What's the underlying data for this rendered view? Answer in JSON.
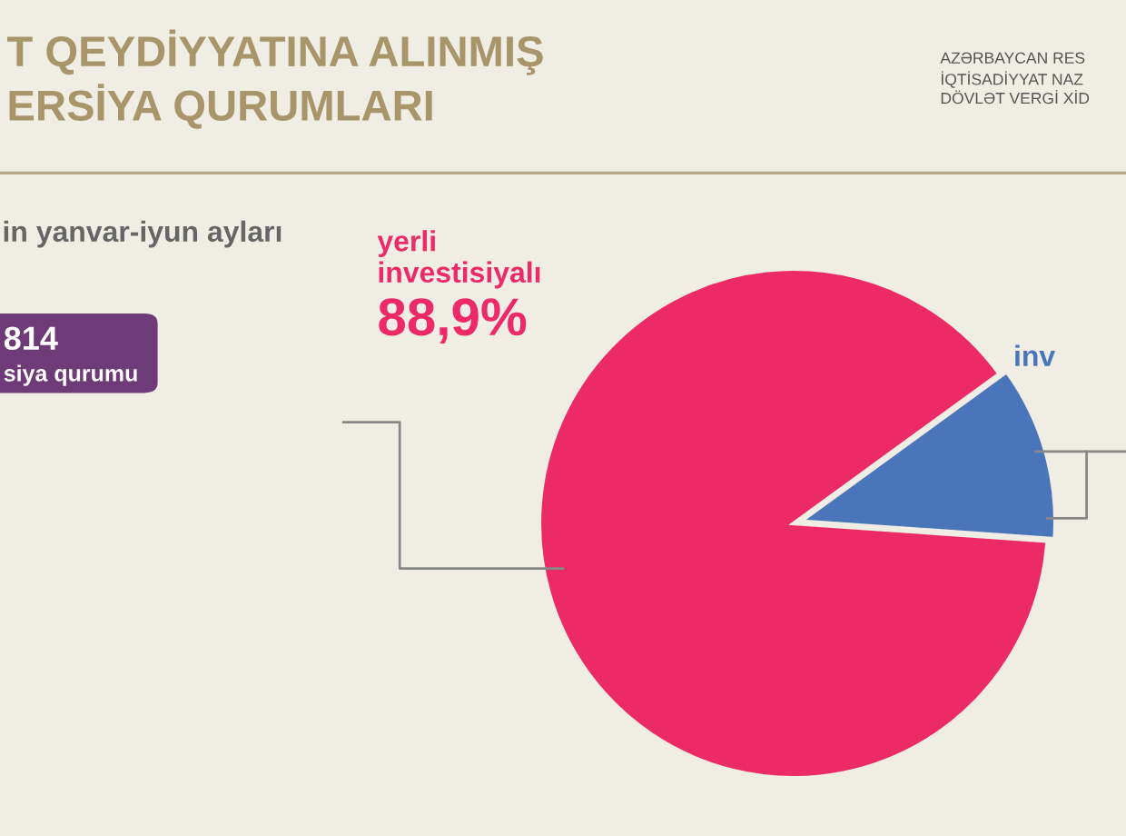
{
  "chart_data": {
    "type": "pie",
    "title": "T QEYDİYYATINA ALINMIŞ\nERSİYA QURUMLARI",
    "subtitle": "in yanvar-iyun ayları",
    "categories": [
      "yerli\ninvestisiyalı",
      "inv"
    ],
    "values": [
      88.9,
      11.1
    ],
    "colors": [
      "#ec2a67",
      "#4a75bb"
    ],
    "value_labels": [
      "88,9%",
      null
    ],
    "annotations": [
      "814",
      "siya qurumu",
      "AZƏRBAYCAN RES\nİQTİSADİYYAT NAZ\nDÖVLƏT VERGİ XİD"
    ]
  }
}
